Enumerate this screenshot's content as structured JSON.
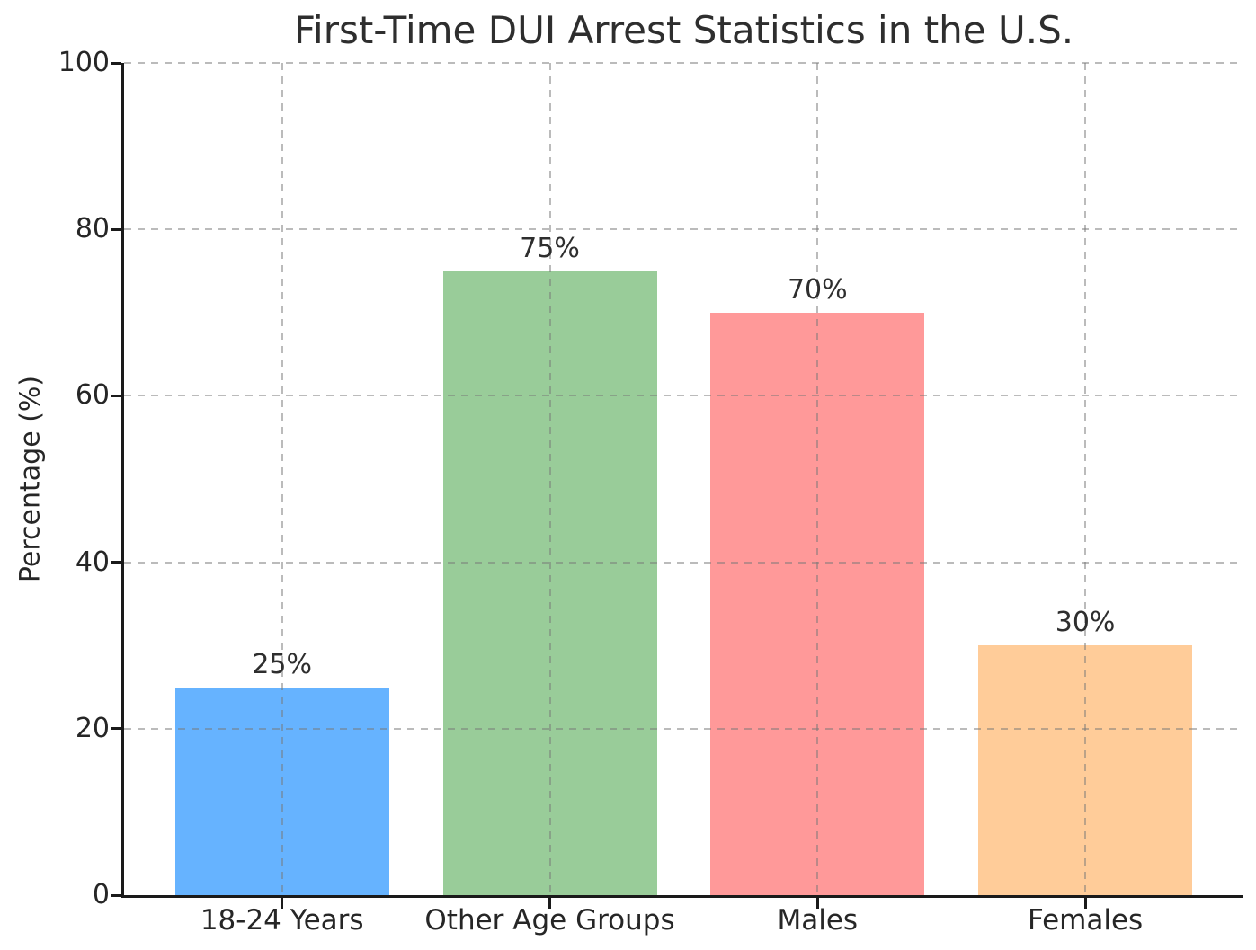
{
  "chart_data": {
    "type": "bar",
    "title": "First-Time DUI Arrest Statistics in the U.S.",
    "xlabel": "",
    "ylabel": "Percentage (%)",
    "categories": [
      "18-24 Years",
      "Other Age Groups",
      "Males",
      "Females"
    ],
    "values": [
      25,
      75,
      70,
      30
    ],
    "bar_labels": [
      "25%",
      "75%",
      "70%",
      "30%"
    ],
    "bar_colors": [
      "#66b3ff",
      "#99cc99",
      "#ff9999",
      "#ffcc99"
    ],
    "ylim": [
      0,
      100
    ],
    "yticks": [
      0,
      20,
      40,
      60,
      80,
      100
    ],
    "grid": "both, dashed, drawn above bars",
    "grid_color": "#c8c8c8",
    "axis_color": "#1a1a1a",
    "legend": "none"
  }
}
